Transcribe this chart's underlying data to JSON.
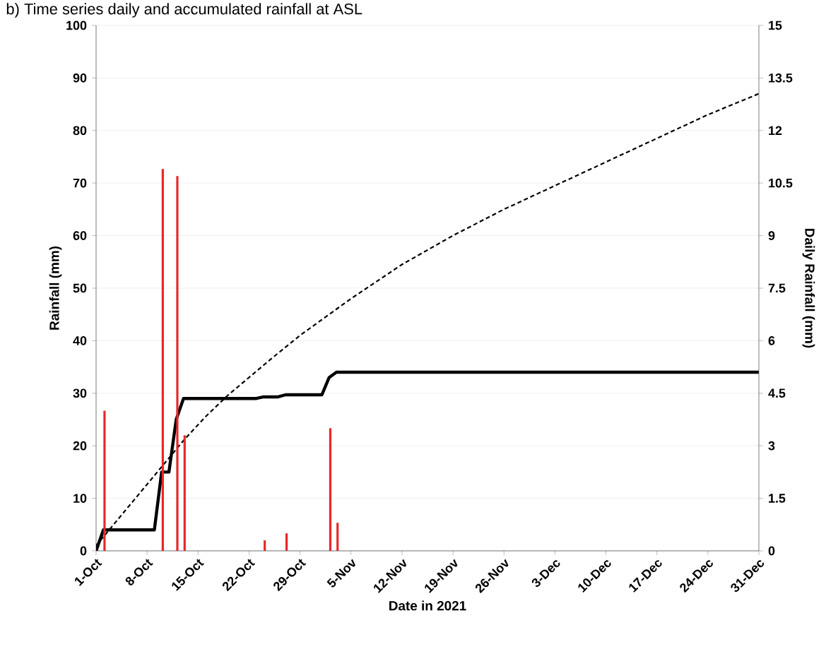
{
  "chart_data": {
    "type": "line",
    "title": "b) Time series daily and accumulated rainfall at ASL",
    "xlabel": "Date in 2021",
    "ylabel": "Rainfall (mm)",
    "y2label": "Daily Rainfall (mm)",
    "xlim": [
      "2021-10-01",
      "2021-12-31"
    ],
    "xticks": [
      {
        "value": "2021-10-01",
        "label": "1-Oct"
      },
      {
        "value": "2021-10-08",
        "label": "8-Oct"
      },
      {
        "value": "2021-10-15",
        "label": "15-Oct"
      },
      {
        "value": "2021-10-22",
        "label": "22-Oct"
      },
      {
        "value": "2021-10-29",
        "label": "29-Oct"
      },
      {
        "value": "2021-11-05",
        "label": "5-Nov"
      },
      {
        "value": "2021-11-12",
        "label": "12-Nov"
      },
      {
        "value": "2021-11-19",
        "label": "19-Nov"
      },
      {
        "value": "2021-11-26",
        "label": "26-Nov"
      },
      {
        "value": "2021-12-03",
        "label": "3-Dec"
      },
      {
        "value": "2021-12-10",
        "label": "10-Dec"
      },
      {
        "value": "2021-12-17",
        "label": "17-Dec"
      },
      {
        "value": "2021-12-24",
        "label": "24-Dec"
      },
      {
        "value": "2021-12-31",
        "label": "31-Dec"
      }
    ],
    "ylim": [
      0,
      100
    ],
    "yticks": [
      0,
      10,
      20,
      30,
      40,
      50,
      60,
      70,
      80,
      90,
      100
    ],
    "y2lim": [
      0,
      15
    ],
    "y2ticks": [
      0,
      1.5,
      3,
      4.5,
      6,
      7.5,
      9,
      10.5,
      12,
      13.5,
      15
    ],
    "grid": "y",
    "legend": false,
    "series": [
      {
        "type": "bar",
        "axis": "y2",
        "color": "#e8262a",
        "x": [
          "2021-10-02",
          "2021-10-10",
          "2021-10-12",
          "2021-10-13",
          "2021-10-24",
          "2021-10-27",
          "2021-11-02",
          "2021-11-03"
        ],
        "values": [
          4.0,
          10.9,
          10.7,
          3.3,
          0.3,
          0.5,
          3.5,
          0.8
        ]
      },
      {
        "line_style": "dashed",
        "color": "#000000",
        "x": [
          "2021-10-01",
          "2021-10-04",
          "2021-10-07",
          "2021-10-10",
          "2021-10-13",
          "2021-10-16",
          "2021-10-19",
          "2021-10-22",
          "2021-10-25",
          "2021-10-29",
          "2021-11-05",
          "2021-11-12",
          "2021-11-19",
          "2021-11-26",
          "2021-12-03",
          "2021-12-10",
          "2021-12-17",
          "2021-12-24",
          "2021-12-31"
        ],
        "values": [
          1,
          6,
          11,
          16,
          21,
          25.5,
          29.5,
          33,
          36.5,
          41,
          48,
          54.5,
          60,
          65,
          69.5,
          74,
          78.5,
          83,
          87
        ]
      },
      {
        "line_style": "solid",
        "color": "#000000",
        "x": [
          "2021-10-01",
          "2021-10-02",
          "2021-10-09",
          "2021-10-10",
          "2021-10-11",
          "2021-10-12",
          "2021-10-13",
          "2021-10-23",
          "2021-10-24",
          "2021-10-26",
          "2021-10-27",
          "2021-11-01",
          "2021-11-02",
          "2021-11-03",
          "2021-12-31"
        ],
        "values": [
          0,
          4,
          4,
          15,
          15,
          25,
          29,
          29,
          29.3,
          29.3,
          29.7,
          29.7,
          33,
          34,
          34
        ]
      }
    ]
  }
}
